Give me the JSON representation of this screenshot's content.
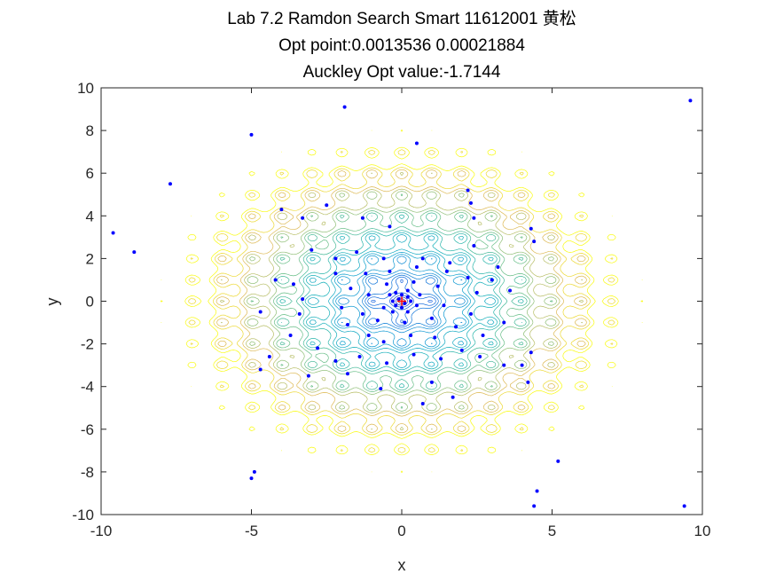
{
  "chart_data": {
    "type": "scatter",
    "title_lines": [
      "Lab 7.2 Ramdon Search Smart 11612001 黄松",
      "Opt point:0.0013536  0.00021884",
      "Auckley Opt value:-1.7144"
    ],
    "xlabel": "x",
    "ylabel": "y",
    "xlim": [
      -10,
      10
    ],
    "ylim": [
      -10,
      10
    ],
    "xticks": [
      -10,
      -5,
      0,
      5,
      10
    ],
    "yticks": [
      -10,
      -8,
      -6,
      -4,
      -2,
      0,
      2,
      4,
      6,
      8,
      10
    ],
    "background": "contour plot of the Ackley function (yellow at high values, blue at the minimum)",
    "series": [
      {
        "marker": "dot",
        "color": "#0000ff",
        "points": [
          [
            -9.6,
            3.2
          ],
          [
            -8.9,
            2.3
          ],
          [
            -7.7,
            5.5
          ],
          [
            -5.0,
            7.8
          ],
          [
            -1.9,
            9.1
          ],
          [
            0.5,
            7.4
          ],
          [
            9.6,
            9.4
          ],
          [
            -4.9,
            -8.0
          ],
          [
            -5.0,
            -8.3
          ],
          [
            0.7,
            -4.8
          ],
          [
            1.7,
            -4.5
          ],
          [
            5.2,
            -7.5
          ],
          [
            4.5,
            -8.9
          ],
          [
            4.4,
            -9.6
          ],
          [
            9.4,
            -9.6
          ],
          [
            -4.0,
            4.3
          ],
          [
            -3.3,
            3.9
          ],
          [
            -2.5,
            4.5
          ],
          [
            -1.3,
            3.9
          ],
          [
            -0.4,
            3.5
          ],
          [
            2.2,
            5.2
          ],
          [
            2.3,
            4.6
          ],
          [
            2.4,
            3.9
          ],
          [
            4.3,
            3.4
          ],
          [
            4.4,
            2.8
          ],
          [
            -4.2,
            1.0
          ],
          [
            -4.7,
            -0.5
          ],
          [
            -4.4,
            -2.6
          ],
          [
            -4.7,
            -3.2
          ],
          [
            -3.1,
            -3.5
          ],
          [
            -1.8,
            -3.4
          ],
          [
            -0.7,
            -4.1
          ],
          [
            1.0,
            -3.8
          ],
          [
            2.6,
            -2.6
          ],
          [
            3.4,
            -3.0
          ],
          [
            4.0,
            -3.0
          ],
          [
            4.2,
            -3.8
          ],
          [
            4.3,
            -2.4
          ],
          [
            -3.0,
            2.4
          ],
          [
            -2.2,
            2.0
          ],
          [
            -1.5,
            2.3
          ],
          [
            -0.6,
            2.0
          ],
          [
            0.7,
            2.0
          ],
          [
            1.6,
            1.8
          ],
          [
            2.4,
            2.6
          ],
          [
            3.2,
            1.6
          ],
          [
            -3.6,
            0.8
          ],
          [
            -3.3,
            0.1
          ],
          [
            -3.4,
            -0.6
          ],
          [
            -3.7,
            -1.6
          ],
          [
            -2.8,
            -2.2
          ],
          [
            -2.2,
            -2.8
          ],
          [
            -1.4,
            -2.6
          ],
          [
            -0.5,
            -2.9
          ],
          [
            0.4,
            -2.5
          ],
          [
            1.3,
            -2.7
          ],
          [
            2.0,
            -2.3
          ],
          [
            2.7,
            -1.6
          ],
          [
            3.4,
            -1.0
          ],
          [
            3.6,
            0.5
          ],
          [
            3.0,
            1.0
          ],
          [
            -2.2,
            1.3
          ],
          [
            -1.7,
            0.6
          ],
          [
            -2.0,
            -0.3
          ],
          [
            -1.8,
            -1.1
          ],
          [
            -1.1,
            -1.6
          ],
          [
            -0.6,
            -1.9
          ],
          [
            0.3,
            -1.6
          ],
          [
            1.1,
            -1.7
          ],
          [
            1.8,
            -1.2
          ],
          [
            2.3,
            -0.6
          ],
          [
            2.5,
            0.4
          ],
          [
            2.2,
            1.1
          ],
          [
            1.5,
            1.4
          ],
          [
            0.5,
            1.6
          ],
          [
            -0.4,
            1.4
          ],
          [
            -1.2,
            1.3
          ],
          [
            -1.1,
            0.3
          ],
          [
            -1.3,
            -0.6
          ],
          [
            -0.8,
            -0.9
          ],
          [
            0.1,
            -1.0
          ],
          [
            1.0,
            -0.8
          ],
          [
            1.4,
            -0.2
          ],
          [
            1.2,
            0.7
          ],
          [
            0.4,
            0.9
          ],
          [
            -0.5,
            0.8
          ],
          [
            -0.4,
            0.3
          ],
          [
            -0.6,
            -0.3
          ],
          [
            -0.3,
            -0.5
          ],
          [
            0.2,
            -0.5
          ],
          [
            0.5,
            -0.2
          ],
          [
            0.6,
            0.3
          ],
          [
            0.2,
            0.5
          ],
          [
            -0.2,
            0.4
          ],
          [
            -0.1,
            0.1
          ],
          [
            0.1,
            -0.1
          ],
          [
            0.2,
            0.2
          ],
          [
            -0.2,
            -0.2
          ],
          [
            0.0,
            0.3
          ],
          [
            0.3,
            0.0
          ],
          [
            -0.3,
            0.0
          ],
          [
            0.0,
            -0.3
          ]
        ]
      },
      {
        "name": "optimum",
        "marker": "plus",
        "color": "#ff0000",
        "points": [
          [
            0.0013536,
            0.00021884
          ]
        ]
      }
    ]
  }
}
